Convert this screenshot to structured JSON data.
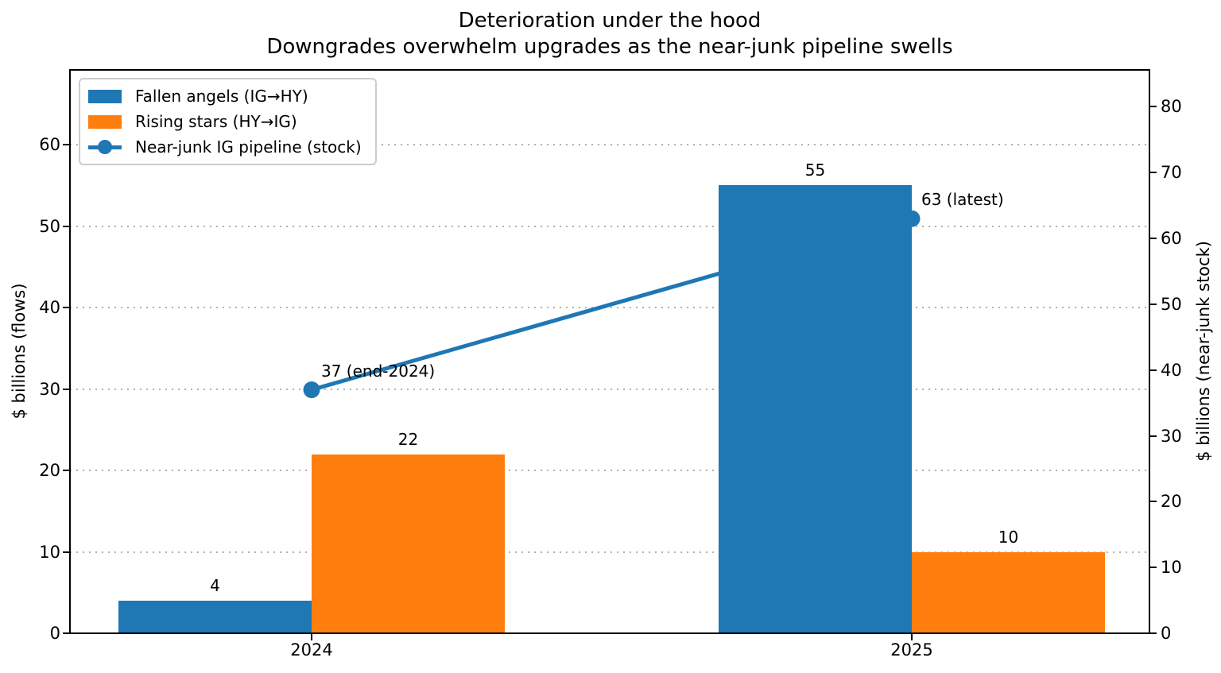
{
  "title": {
    "line1": "Deterioration under the hood",
    "line2": "Downgrades overwhelm upgrades as the near-junk pipeline swells"
  },
  "axes": {
    "left": {
      "label": "$ billions (flows)",
      "ticks": [
        0,
        10,
        20,
        30,
        40,
        50,
        60
      ]
    },
    "right": {
      "label": "$ billions (near-junk stock)",
      "ticks": [
        0,
        10,
        20,
        30,
        40,
        50,
        60,
        70,
        80
      ]
    },
    "x": {
      "categories": [
        "2024",
        "2025"
      ]
    }
  },
  "legend": {
    "items": [
      {
        "label": "Fallen angels (IG→HY)",
        "swatch": "patch",
        "color": "#1f77b4"
      },
      {
        "label": "Rising stars (HY→IG)",
        "swatch": "patch",
        "color": "#ff7f0e"
      },
      {
        "label": "Near-junk IG pipeline (stock)",
        "swatch": "line-marker",
        "color": "#1f77b4"
      }
    ]
  },
  "chart_data": {
    "type": "bar",
    "categories": [
      "2024",
      "2025"
    ],
    "series": [
      {
        "name": "Fallen angels (IG→HY)",
        "type": "bar",
        "axis": "left",
        "color": "#1f77b4",
        "values": [
          4,
          55
        ]
      },
      {
        "name": "Rising stars (HY→IG)",
        "type": "bar",
        "axis": "left",
        "color": "#ff7f0e",
        "values": [
          22,
          10
        ]
      },
      {
        "name": "Near-junk IG pipeline (stock)",
        "type": "line",
        "axis": "right",
        "color": "#1f77b4",
        "values": [
          37,
          63
        ]
      }
    ],
    "bar_value_labels": [
      [
        "4",
        "55"
      ],
      [
        "22",
        "10"
      ]
    ],
    "annotations": [
      {
        "text": "37 (end-2024)",
        "series": "Near-junk IG pipeline (stock)",
        "category": "2024",
        "value": 37
      },
      {
        "text": "63 (latest)",
        "series": "Near-junk IG pipeline (stock)",
        "category": "2025",
        "value": 63
      }
    ],
    "title": "Deterioration under the hood\nDowngrades overwhelm upgrades as the near-junk pipeline swells",
    "xlabel": "",
    "ylabel_left": "$ billions (flows)",
    "ylabel_right": "$ billions (near-junk stock)",
    "ylim_left": [
      0,
      69.2
    ],
    "ylim_right": [
      0,
      85.6
    ],
    "grid": "horizontal dotted, left-axis ticks",
    "legend_position": "upper left"
  },
  "colors": {
    "blue": "#1f77b4",
    "orange": "#ff7f0e",
    "grid": "#b0b0b0",
    "spine": "#000000",
    "legend_border": "#cccccc"
  }
}
